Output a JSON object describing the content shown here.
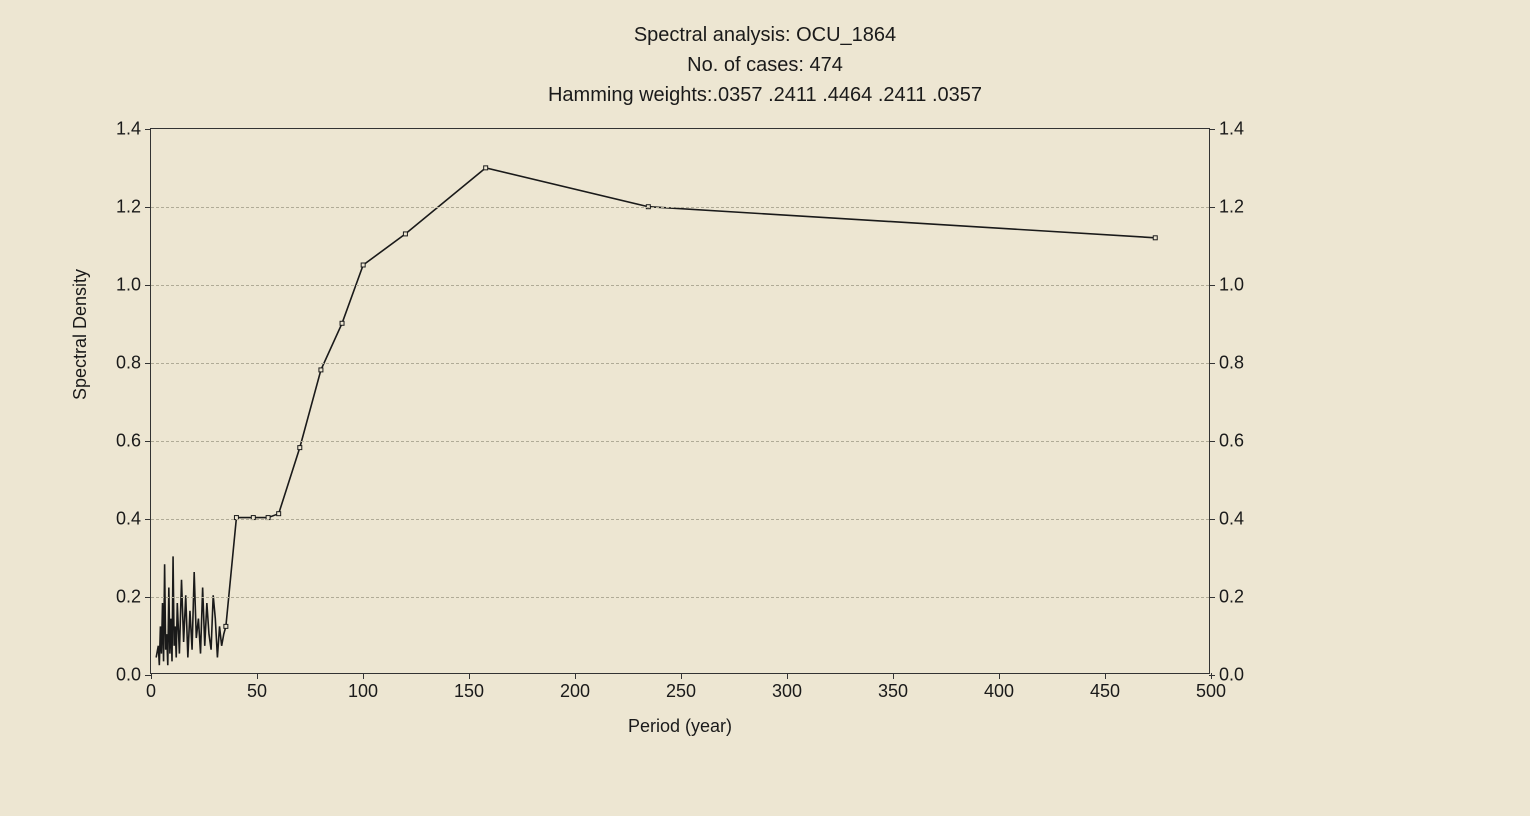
{
  "title": {
    "line1": "Spectral analysis: OCU_1864",
    "line2": "No. of cases: 474",
    "line3": "Hamming weights:.0357 .2411 .4464 .2411 .0357"
  },
  "chart": {
    "type": "line",
    "xlabel": "Period (year)",
    "ylabel": "Spectral Density",
    "xlim": [
      0,
      500
    ],
    "ylim": [
      0.0,
      1.4
    ],
    "xticks": [
      0,
      50,
      100,
      150,
      200,
      250,
      300,
      350,
      400,
      450,
      500
    ],
    "yticks_left": [
      "0.0",
      "0.2",
      "0.4",
      "0.6",
      "0.8",
      "1.0",
      "1.2",
      "1.4"
    ],
    "yticks_right": [
      "0.0",
      "0.2",
      "0.4",
      "0.6",
      "0.8",
      "1.0",
      "1.2",
      "1.4"
    ],
    "ytick_values": [
      0.0,
      0.2,
      0.4,
      0.6,
      0.8,
      1.0,
      1.2,
      1.4
    ],
    "grid_color": "#b0ab97",
    "background_color": "#ede6d2",
    "line_color": "#1a1a1a",
    "line_width": 1.6,
    "marker_color": "#1a1a1a",
    "marker_size": 4,
    "series_smooth": [
      {
        "x": 35,
        "y": 0.12
      },
      {
        "x": 40,
        "y": 0.4
      },
      {
        "x": 48,
        "y": 0.4
      },
      {
        "x": 55,
        "y": 0.4
      },
      {
        "x": 60,
        "y": 0.41
      },
      {
        "x": 70,
        "y": 0.58
      },
      {
        "x": 80,
        "y": 0.78
      },
      {
        "x": 90,
        "y": 0.9
      },
      {
        "x": 100,
        "y": 1.05
      },
      {
        "x": 120,
        "y": 1.13
      },
      {
        "x": 158,
        "y": 1.3
      },
      {
        "x": 235,
        "y": 1.2
      },
      {
        "x": 475,
        "y": 1.12
      }
    ],
    "series_noise": [
      {
        "x": 2,
        "y": 0.04
      },
      {
        "x": 3,
        "y": 0.07
      },
      {
        "x": 3.5,
        "y": 0.02
      },
      {
        "x": 4,
        "y": 0.12
      },
      {
        "x": 4.5,
        "y": 0.05
      },
      {
        "x": 5,
        "y": 0.18
      },
      {
        "x": 5.5,
        "y": 0.03
      },
      {
        "x": 6,
        "y": 0.28
      },
      {
        "x": 6.5,
        "y": 0.06
      },
      {
        "x": 7,
        "y": 0.1
      },
      {
        "x": 7.5,
        "y": 0.02
      },
      {
        "x": 8,
        "y": 0.22
      },
      {
        "x": 8.5,
        "y": 0.05
      },
      {
        "x": 9,
        "y": 0.14
      },
      {
        "x": 9.5,
        "y": 0.03
      },
      {
        "x": 10,
        "y": 0.3
      },
      {
        "x": 10.5,
        "y": 0.07
      },
      {
        "x": 11,
        "y": 0.12
      },
      {
        "x": 11.5,
        "y": 0.04
      },
      {
        "x": 12,
        "y": 0.18
      },
      {
        "x": 13,
        "y": 0.05
      },
      {
        "x": 14,
        "y": 0.24
      },
      {
        "x": 15,
        "y": 0.08
      },
      {
        "x": 16,
        "y": 0.2
      },
      {
        "x": 17,
        "y": 0.04
      },
      {
        "x": 18,
        "y": 0.16
      },
      {
        "x": 19,
        "y": 0.06
      },
      {
        "x": 20,
        "y": 0.26
      },
      {
        "x": 21,
        "y": 0.09
      },
      {
        "x": 22,
        "y": 0.14
      },
      {
        "x": 23,
        "y": 0.05
      },
      {
        "x": 24,
        "y": 0.22
      },
      {
        "x": 25,
        "y": 0.07
      },
      {
        "x": 26,
        "y": 0.18
      },
      {
        "x": 27,
        "y": 0.1
      },
      {
        "x": 28,
        "y": 0.06
      },
      {
        "x": 29,
        "y": 0.2
      },
      {
        "x": 30,
        "y": 0.14
      },
      {
        "x": 31,
        "y": 0.04
      },
      {
        "x": 32,
        "y": 0.12
      },
      {
        "x": 33,
        "y": 0.07
      },
      {
        "x": 34,
        "y": 0.1
      },
      {
        "x": 35,
        "y": 0.12
      }
    ]
  }
}
